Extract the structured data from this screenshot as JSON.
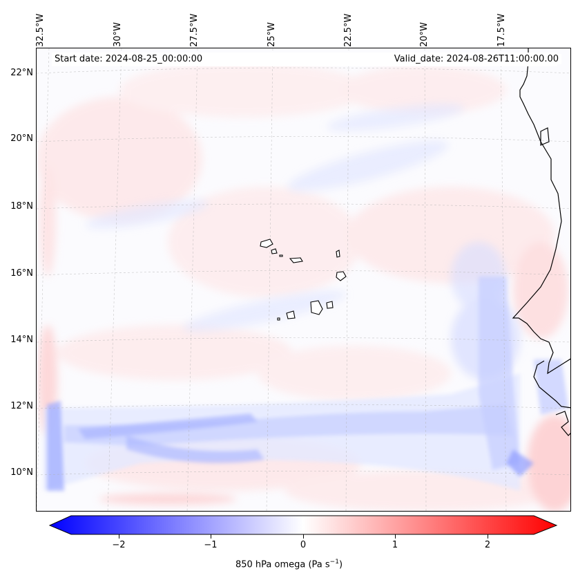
{
  "header": {
    "start_date": "Start date: 2024-08-25_00:00:00",
    "valid_date": "Valid_date: 2024-08-26T11:00:00.00"
  },
  "longitude_labels": [
    "32.5°W",
    "30°W",
    "27.5°W",
    "25°W",
    "22.5°W",
    "20°W",
    "17.5°W"
  ],
  "latitude_labels": [
    "22°N",
    "20°N",
    "18°N",
    "16°N",
    "14°N",
    "12°N",
    "10°N"
  ],
  "colorbar": {
    "label": "850 hPa omega (Pa s",
    "label_exponent": "−1",
    "label_close": ")",
    "tick_labels": [
      "−2",
      "−1",
      "0",
      "1",
      "2"
    ],
    "range": [
      -2.5,
      2.5
    ],
    "colormap": "bwr",
    "extend": "both",
    "low_color": "#0000ff",
    "mid_color": "#ffffff",
    "high_color": "#ff0000"
  },
  "map": {
    "coastline_color": "#000000",
    "gridline_color": "#b0b0b0",
    "projection": "Lambert conformal",
    "field": "850 hPa omega"
  }
}
